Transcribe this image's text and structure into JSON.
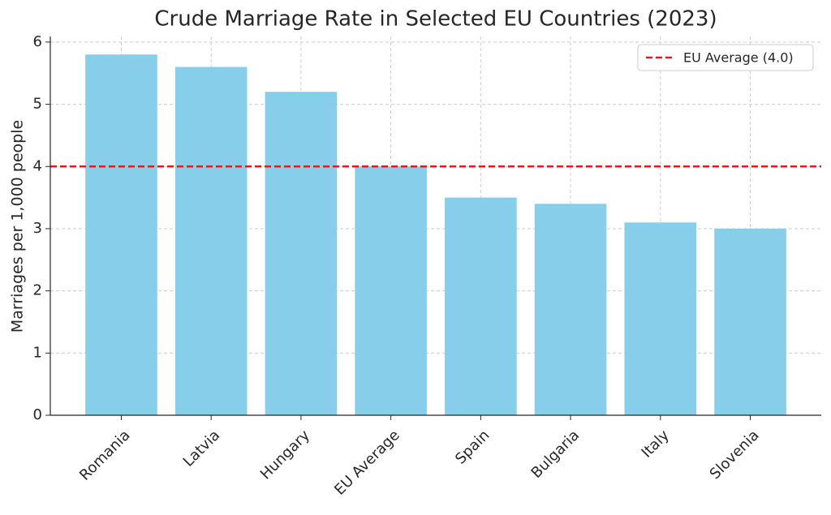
{
  "chart_data": {
    "type": "bar",
    "title": "Crude Marriage Rate in Selected EU Countries (2023)",
    "y_label": "Marriages per 1,000 people",
    "categories": [
      "Romania",
      "Latvia",
      "Hungary",
      "EU Average",
      "Spain",
      "Bulgaria",
      "Italy",
      "Slovenia"
    ],
    "values": [
      5.8,
      5.6,
      5.2,
      4.0,
      3.5,
      3.4,
      3.1,
      3.0
    ],
    "color": "#87ceeb",
    "ylim": [
      0,
      6.09
    ],
    "yticks": [
      0,
      1,
      2,
      3,
      4,
      5,
      6
    ],
    "grid": true,
    "reference_line": {
      "value": 4.0,
      "label": "EU Average (4.0)",
      "color": "#e41a1c"
    },
    "legend": "upper right"
  }
}
